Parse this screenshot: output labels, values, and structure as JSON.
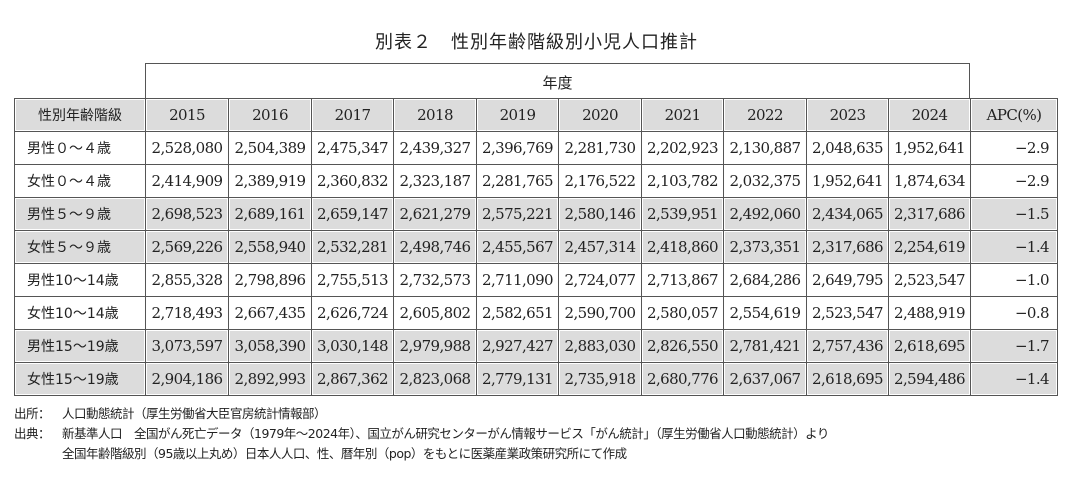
{
  "title": "別表２　性別年齢階級別小児人口推計",
  "header_group": "年度",
  "columns": [
    "性別年齢階級",
    "2015",
    "2016",
    "2017",
    "2018",
    "2019",
    "2020",
    "2021",
    "2022",
    "2023",
    "2024",
    "APC(%)"
  ],
  "rows": [
    {
      "label": "男性０～４歳",
      "values": [
        "2,528,080",
        "2,504,389",
        "2,475,347",
        "2,439,327",
        "2,396,769",
        "2,281,730",
        "2,202,923",
        "2,130,887",
        "2,048,635",
        "1,952,641"
      ],
      "apc": "−2.9",
      "shaded": false
    },
    {
      "label": "女性０～４歳",
      "values": [
        "2,414,909",
        "2,389,919",
        "2,360,832",
        "2,323,187",
        "2,281,765",
        "2,176,522",
        "2,103,782",
        "2,032,375",
        "1,952,641",
        "1,874,634"
      ],
      "apc": "−2.9",
      "shaded": false
    },
    {
      "label": "男性５～９歳",
      "values": [
        "2,698,523",
        "2,689,161",
        "2,659,147",
        "2,621,279",
        "2,575,221",
        "2,580,146",
        "2,539,951",
        "2,492,060",
        "2,434,065",
        "2,317,686"
      ],
      "apc": "−1.5",
      "shaded": true
    },
    {
      "label": "女性５～９歳",
      "values": [
        "2,569,226",
        "2,558,940",
        "2,532,281",
        "2,498,746",
        "2,455,567",
        "2,457,314",
        "2,418,860",
        "2,373,351",
        "2,317,686",
        "2,254,619"
      ],
      "apc": "−1.4",
      "shaded": true
    },
    {
      "label": "男性10～14歳",
      "values": [
        "2,855,328",
        "2,798,896",
        "2,755,513",
        "2,732,573",
        "2,711,090",
        "2,724,077",
        "2,713,867",
        "2,684,286",
        "2,649,795",
        "2,523,547"
      ],
      "apc": "−1.0",
      "shaded": false
    },
    {
      "label": "女性10～14歳",
      "values": [
        "2,718,493",
        "2,667,435",
        "2,626,724",
        "2,605,802",
        "2,582,651",
        "2,590,700",
        "2,580,057",
        "2,554,619",
        "2,523,547",
        "2,488,919"
      ],
      "apc": "−0.8",
      "shaded": false
    },
    {
      "label": "男性15～19歳",
      "values": [
        "3,073,597",
        "3,058,390",
        "3,030,148",
        "2,979,988",
        "2,927,427",
        "2,883,030",
        "2,826,550",
        "2,781,421",
        "2,757,436",
        "2,618,695"
      ],
      "apc": "−1.7",
      "shaded": true
    },
    {
      "label": "女性15～19歳",
      "values": [
        "2,904,186",
        "2,892,993",
        "2,867,362",
        "2,823,068",
        "2,779,131",
        "2,735,918",
        "2,680,776",
        "2,637,067",
        "2,618,695",
        "2,594,486"
      ],
      "apc": "−1.4",
      "shaded": true
    }
  ],
  "notes": [
    {
      "key": "出所：",
      "text": "人口動態統計（厚生労働省大臣官房統計情報部）"
    },
    {
      "key": "出典：",
      "text": "新基準人口　全国がん死亡データ（1979年～2024年）、国立がん研究センターがん情報サービス「がん統計」（厚生労働省人口動態統計）より"
    },
    {
      "key": "",
      "text": "全国年齢階級別（95歳以上丸め）日本人人口、性、暦年別（pop）をもとに医薬産業政策研究所にて作成"
    }
  ],
  "colors": {
    "shade": "#dcdcdc",
    "border": "#555555"
  }
}
